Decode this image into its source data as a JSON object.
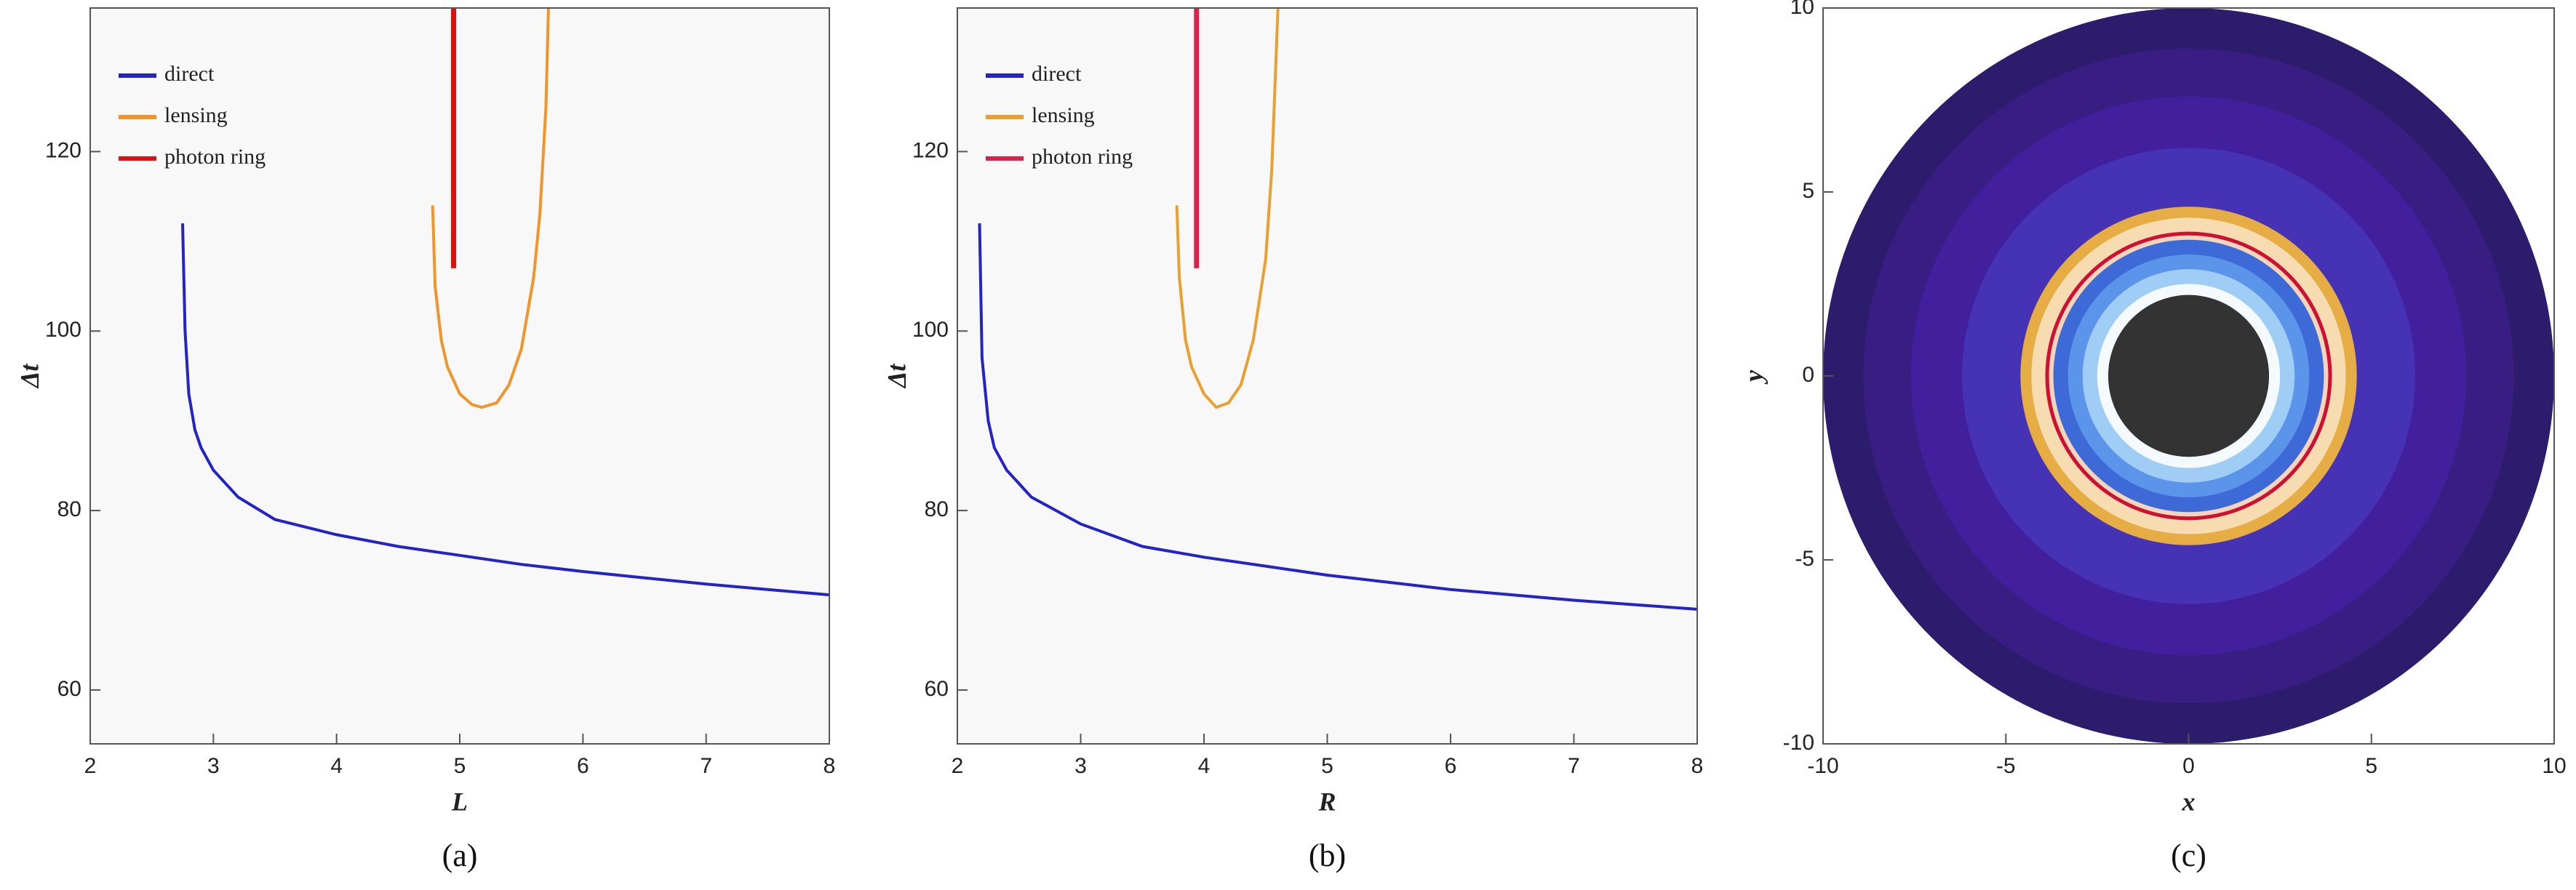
{
  "chart_data": [
    {
      "type": "line",
      "caption": "(a)",
      "xlabel": "L",
      "ylabel": "Δt",
      "xlim": [
        2,
        8
      ],
      "ylim": [
        54,
        136
      ],
      "xticks": [
        2,
        3,
        4,
        5,
        6,
        7,
        8
      ],
      "yticks": [
        60,
        80,
        100,
        120
      ],
      "legend": "upper left",
      "series": [
        {
          "name": "direct",
          "color": "#2323c8",
          "x": [
            2.75,
            2.77,
            2.8,
            2.85,
            2.9,
            3,
            3.2,
            3.5,
            4,
            4.5,
            5,
            5.5,
            6,
            6.5,
            7,
            7.5,
            8
          ],
          "values": [
            112,
            100,
            93,
            89,
            87,
            84.5,
            81.5,
            79,
            77.3,
            76,
            75,
            74,
            73.2,
            72.5,
            71.8,
            71.2,
            70.6
          ]
        },
        {
          "name": "lensing",
          "color": "#f0952a",
          "x": [
            4.78,
            4.8,
            4.85,
            4.9,
            5,
            5.1,
            5.18,
            5.3,
            5.4,
            5.5,
            5.6,
            5.65,
            5.7,
            5.72
          ],
          "values": [
            114,
            105,
            99,
            96,
            93,
            91.8,
            91.5,
            92,
            94,
            98,
            106,
            113,
            125,
            136
          ]
        },
        {
          "name": "photon ring",
          "color": "#e01010",
          "x": [
            4.95,
            4.95
          ],
          "values": [
            107,
            136
          ]
        }
      ]
    },
    {
      "type": "line",
      "caption": "(b)",
      "xlabel": "R",
      "ylabel": "Δt",
      "xlim": [
        2,
        8
      ],
      "ylim": [
        54,
        136
      ],
      "xticks": [
        2,
        3,
        4,
        5,
        6,
        7,
        8
      ],
      "yticks": [
        60,
        80,
        100,
        120
      ],
      "legend": "upper left",
      "series": [
        {
          "name": "direct",
          "color": "#2323c8",
          "x": [
            2.18,
            2.2,
            2.25,
            2.3,
            2.4,
            2.6,
            3,
            3.5,
            4,
            4.5,
            5,
            5.5,
            6,
            6.5,
            7,
            7.5,
            8
          ],
          "values": [
            112,
            97,
            90,
            87,
            84.5,
            81.5,
            78.5,
            76,
            74.8,
            73.8,
            72.8,
            72,
            71.2,
            70.6,
            70,
            69.5,
            69
          ]
        },
        {
          "name": "lensing",
          "color": "#e8a030",
          "x": [
            3.78,
            3.8,
            3.85,
            3.9,
            4,
            4.1,
            4.2,
            4.3,
            4.4,
            4.5,
            4.55,
            4.6
          ],
          "values": [
            114,
            106,
            99,
            96,
            93,
            91.5,
            92,
            94,
            99,
            108,
            118,
            136
          ]
        },
        {
          "name": "photon ring",
          "color": "#e0204a",
          "x": [
            3.94,
            3.94
          ],
          "values": [
            107,
            136
          ]
        }
      ]
    },
    {
      "type": "disk",
      "caption": "(c)",
      "xlabel": "x",
      "ylabel": "y",
      "xlim": [
        -10,
        10
      ],
      "ylim": [
        -10,
        10
      ],
      "xticks": [
        -10,
        -5,
        0,
        5,
        10
      ],
      "yticks": [
        -10,
        -5,
        0,
        5,
        10
      ],
      "rings": [
        {
          "radius": 10,
          "color": "#2d1b6c"
        },
        {
          "radius": 8.9,
          "color": "#381d82"
        },
        {
          "radius": 7.6,
          "color": "#421f9c"
        },
        {
          "radius": 6.2,
          "color": "#4532b4"
        },
        {
          "radius": 4.6,
          "color": "#e6ad45"
        },
        {
          "radius": 4.3,
          "color": "#f6dcb0"
        },
        {
          "radius": 3.92,
          "color": "#cc1133"
        },
        {
          "radius": 3.82,
          "color": "#f3d6bb"
        },
        {
          "radius": 3.7,
          "color": "#3e6ad8"
        },
        {
          "radius": 3.3,
          "color": "#5c94ea"
        },
        {
          "radius": 2.9,
          "color": "#9fcdf6"
        },
        {
          "radius": 2.5,
          "color": "#f4fafe"
        },
        {
          "radius": 2.2,
          "color": "#333333"
        }
      ]
    }
  ]
}
